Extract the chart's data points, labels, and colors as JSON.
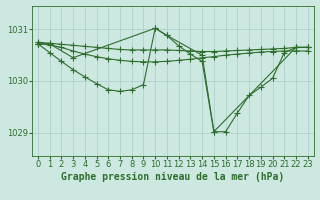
{
  "background_color": "#cce8e0",
  "grid_color": "#aacccc",
  "line_color": "#2d6e2d",
  "title": "Graphe pression niveau de la mer (hPa)",
  "tick_fontsize": 6,
  "title_fontsize": 7,
  "xlim": [
    -0.5,
    23.5
  ],
  "ylim": [
    1028.55,
    1031.45
  ],
  "yticks": [
    1029,
    1030,
    1031
  ],
  "xticks": [
    0,
    1,
    2,
    3,
    4,
    5,
    6,
    7,
    8,
    9,
    10,
    11,
    12,
    13,
    14,
    15,
    16,
    17,
    18,
    19,
    20,
    21,
    22,
    23
  ],
  "series": [
    {
      "x": [
        0,
        1,
        2,
        3,
        4,
        5,
        6,
        7,
        8,
        9,
        10,
        11,
        12,
        13,
        14,
        15,
        16,
        17,
        18,
        19,
        20,
        21,
        22,
        23
      ],
      "y": [
        1030.75,
        1030.73,
        1030.71,
        1030.69,
        1030.67,
        1030.65,
        1030.63,
        1030.61,
        1030.6,
        1030.6,
        1030.6,
        1030.6,
        1030.59,
        1030.58,
        1030.57,
        1030.57,
        1030.58,
        1030.59,
        1030.6,
        1030.61,
        1030.62,
        1030.63,
        1030.65,
        1030.65
      ]
    },
    {
      "x": [
        0,
        1,
        2,
        3,
        4,
        5,
        6,
        7,
        8,
        9,
        10,
        11,
        12,
        13,
        14,
        15,
        16,
        17,
        18,
        19,
        20,
        21,
        22,
        23
      ],
      "y": [
        1030.72,
        1030.7,
        1030.65,
        1030.58,
        1030.52,
        1030.47,
        1030.43,
        1030.4,
        1030.38,
        1030.37,
        1030.37,
        1030.38,
        1030.4,
        1030.42,
        1030.45,
        1030.47,
        1030.5,
        1030.52,
        1030.54,
        1030.56,
        1030.57,
        1030.58,
        1030.58,
        1030.58
      ]
    },
    {
      "x": [
        0,
        1,
        2,
        3,
        4,
        5,
        6,
        7,
        8,
        9,
        10,
        11,
        12,
        13,
        14,
        15,
        16,
        17,
        18,
        19,
        20,
        21,
        22,
        23
      ],
      "y": [
        1030.72,
        1030.55,
        1030.38,
        1030.22,
        1030.08,
        1029.95,
        1029.83,
        1029.8,
        1029.83,
        1029.93,
        1031.02,
        1030.88,
        1030.68,
        1030.52,
        1030.38,
        1029.02,
        1029.02,
        1029.38,
        1029.72,
        1029.88,
        1030.05,
        1030.55,
        1030.65,
        1030.65
      ]
    },
    {
      "x": [
        0,
        1,
        3,
        10,
        11,
        14,
        15,
        22,
        23
      ],
      "y": [
        1030.72,
        1030.72,
        1030.45,
        1031.02,
        1030.88,
        1030.5,
        1029.02,
        1030.65,
        1030.65
      ]
    }
  ]
}
